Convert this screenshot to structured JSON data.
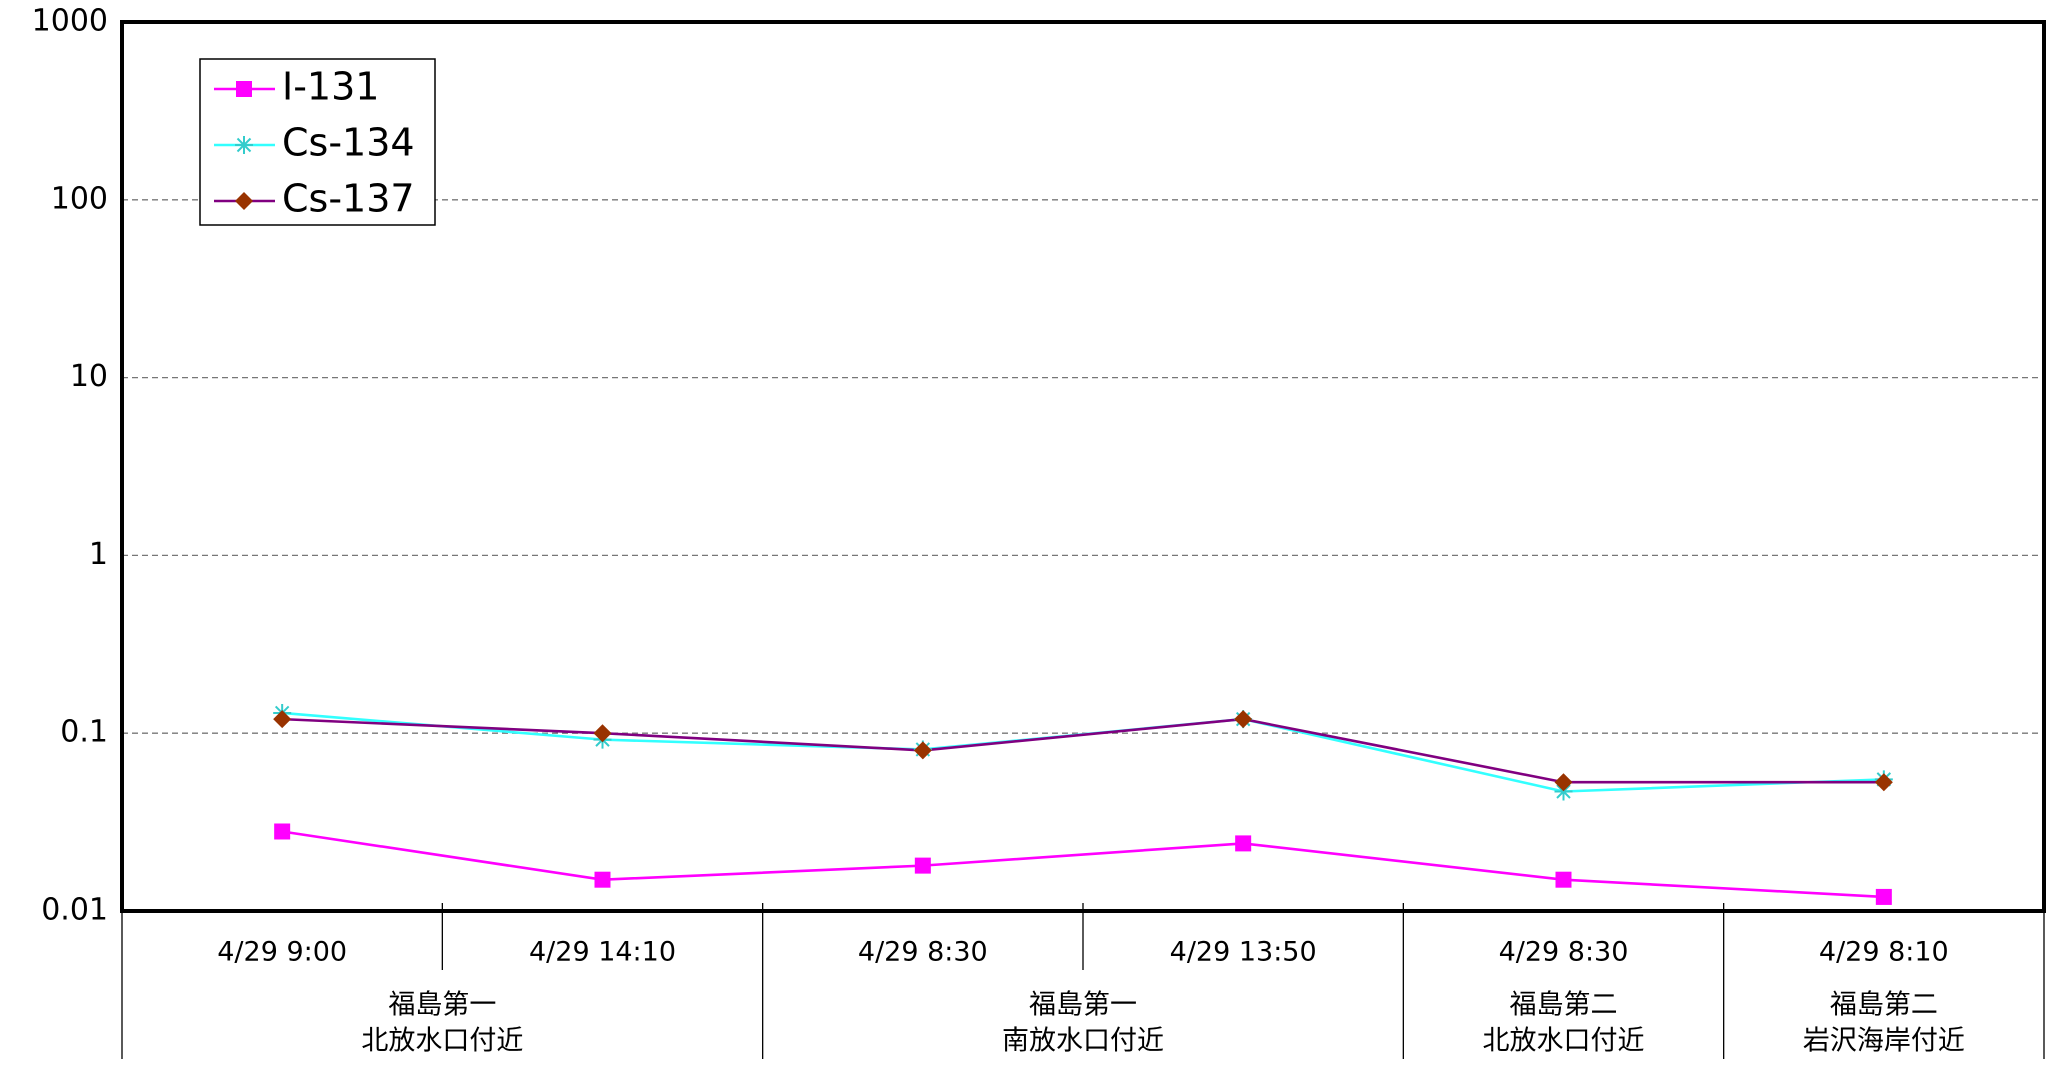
{
  "chart_data": {
    "type": "line",
    "log_scale": true,
    "grid": true,
    "legend": "top-left",
    "categories": [
      "4/29 9:00",
      "4/29 14:10",
      "4/29 8:30",
      "4/29 13:50",
      "4/29 8:30",
      "4/29 8:10"
    ],
    "groups": [
      {
        "label": [
          "福島第一",
          "北放水口付近"
        ],
        "count": 2
      },
      {
        "label": [
          "福島第一",
          "南放水口付近"
        ],
        "count": 2
      },
      {
        "label": [
          "福島第二",
          "北放水口付近"
        ],
        "count": 1
      },
      {
        "label": [
          "福島第二",
          "岩沢海岸付近"
        ],
        "count": 1
      }
    ],
    "series": [
      {
        "name": "I-131",
        "color": "#ff00ff",
        "marker": "square",
        "marker_color": "#ff00ff",
        "values": [
          0.028,
          0.015,
          0.018,
          0.024,
          0.015,
          0.012
        ]
      },
      {
        "name": "Cs-134",
        "color": "#33ffff",
        "marker": "asterisk",
        "marker_color": "#33cccc",
        "values": [
          0.13,
          0.092,
          0.081,
          0.12,
          0.047,
          0.055
        ]
      },
      {
        "name": "Cs-137",
        "color": "#800080",
        "marker": "diamond",
        "marker_color": "#993300",
        "values": [
          0.12,
          0.1,
          0.08,
          0.12,
          0.053,
          0.053
        ]
      }
    ],
    "ylim": [
      0.01,
      1000
    ],
    "yticks": [
      0.01,
      0.1,
      1,
      10,
      100,
      1000
    ]
  }
}
